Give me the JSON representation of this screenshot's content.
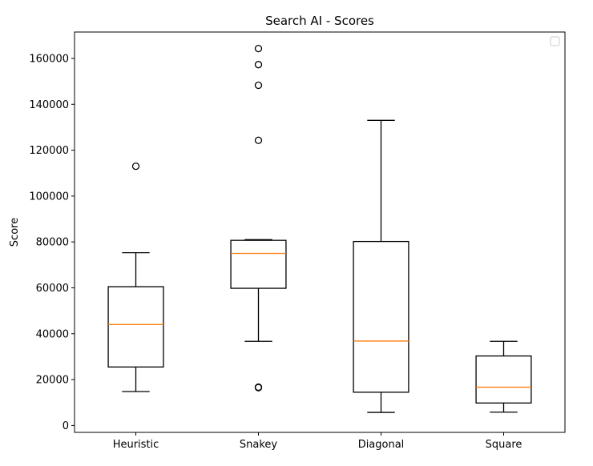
{
  "chart_data": {
    "type": "boxplot",
    "title": "Search AI - Scores",
    "xlabel": "",
    "ylabel": "Score",
    "ylim": [
      -3000,
      171500
    ],
    "yticks": [
      0,
      20000,
      40000,
      60000,
      80000,
      100000,
      120000,
      140000,
      160000
    ],
    "ytick_labels": [
      "0",
      "20000",
      "40000",
      "60000",
      "80000",
      "100000",
      "120000",
      "140000",
      "160000"
    ],
    "legend": "top-right (empty)",
    "grid": false,
    "colors": {
      "box": "#000000",
      "median": "#ff7f0e"
    },
    "categories": [
      "Heuristic",
      "Snakey",
      "Diagonal",
      "Square"
    ],
    "boxes": [
      {
        "whisker_low": 14800,
        "q1": 25500,
        "median": 44000,
        "q3": 60500,
        "whisker_high": 75300,
        "fliers": [
          113000
        ]
      },
      {
        "whisker_low": 36700,
        "q1": 59800,
        "median": 75000,
        "q3": 80700,
        "whisker_high": 81000,
        "fliers": [
          16500,
          16700,
          124300,
          148300,
          157300,
          164300
        ]
      },
      {
        "whisker_low": 5700,
        "q1": 14500,
        "median": 36800,
        "q3": 80200,
        "whisker_high": 133000,
        "fliers": []
      },
      {
        "whisker_low": 5800,
        "q1": 9800,
        "median": 16700,
        "q3": 30300,
        "whisker_high": 36700,
        "fliers": []
      }
    ]
  }
}
